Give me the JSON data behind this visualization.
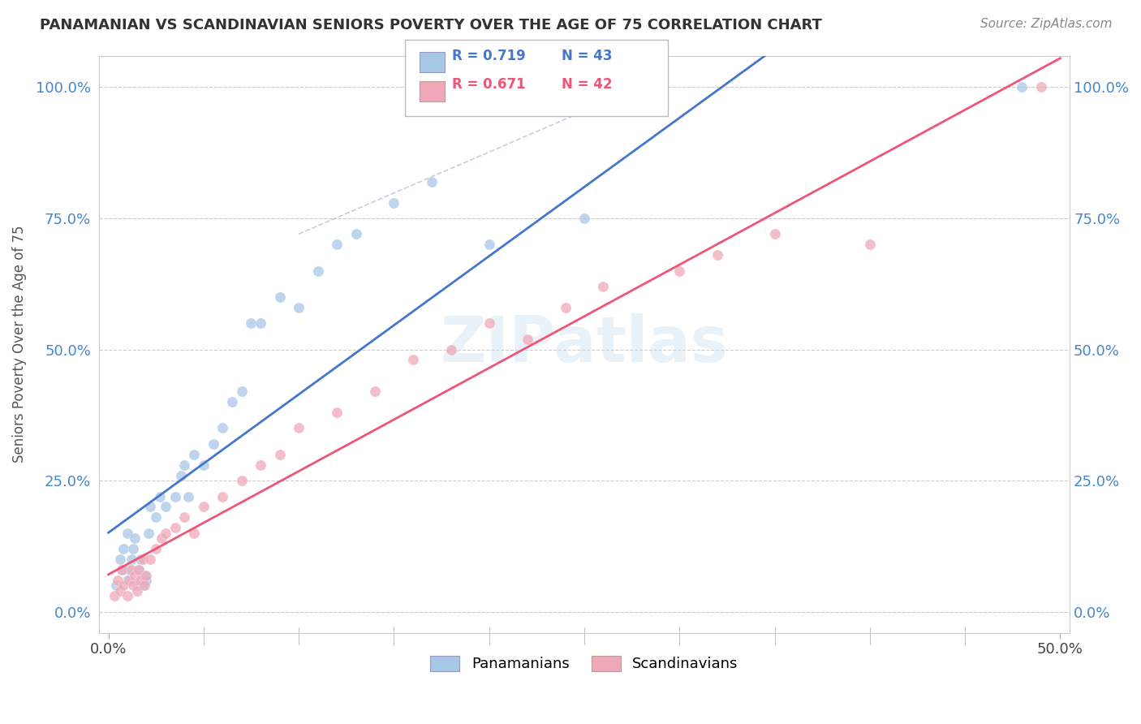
{
  "title": "PANAMANIAN VS SCANDINAVIAN SENIORS POVERTY OVER THE AGE OF 75 CORRELATION CHART",
  "source": "Source: ZipAtlas.com",
  "ylabel": "Seniors Poverty Over the Age of 75",
  "xlabel": "",
  "xlim": [
    -0.005,
    0.505
  ],
  "ylim": [
    -0.04,
    1.06
  ],
  "ytick_labels": [
    "0.0%",
    "25.0%",
    "50.0%",
    "75.0%",
    "100.0%"
  ],
  "ytick_values": [
    0.0,
    0.25,
    0.5,
    0.75,
    1.0
  ],
  "xtick_labels": [
    "0.0%",
    "50.0%"
  ],
  "xtick_values": [
    0.0,
    0.5
  ],
  "panamanian_color": "#a8c8e8",
  "scandinavian_color": "#f0a8b8",
  "panamanian_line_color": "#4477cc",
  "scandinavian_line_color": "#ee5577",
  "watermark": "ZIPatlas",
  "background_color": "#ffffff",
  "panamanian_R": 0.719,
  "panamanian_N": 43,
  "scandinavian_R": 0.671,
  "scandinavian_N": 42,
  "pan_x": [
    0.004,
    0.006,
    0.007,
    0.008,
    0.01,
    0.01,
    0.011,
    0.012,
    0.013,
    0.014,
    0.015,
    0.016,
    0.017,
    0.018,
    0.019,
    0.02,
    0.021,
    0.022,
    0.025,
    0.027,
    0.03,
    0.035,
    0.038,
    0.04,
    0.042,
    0.045,
    0.05,
    0.055,
    0.06,
    0.065,
    0.07,
    0.075,
    0.08,
    0.09,
    0.1,
    0.11,
    0.12,
    0.13,
    0.15,
    0.17,
    0.2,
    0.25,
    0.48
  ],
  "pan_y": [
    0.05,
    0.1,
    0.08,
    0.12,
    0.06,
    0.15,
    0.08,
    0.1,
    0.12,
    0.14,
    0.05,
    0.08,
    0.1,
    0.05,
    0.07,
    0.06,
    0.15,
    0.2,
    0.18,
    0.22,
    0.2,
    0.22,
    0.26,
    0.28,
    0.22,
    0.3,
    0.28,
    0.32,
    0.35,
    0.4,
    0.42,
    0.55,
    0.55,
    0.6,
    0.58,
    0.65,
    0.7,
    0.72,
    0.78,
    0.82,
    0.7,
    0.75,
    1.0
  ],
  "scan_x": [
    0.003,
    0.005,
    0.006,
    0.007,
    0.008,
    0.01,
    0.011,
    0.012,
    0.013,
    0.014,
    0.015,
    0.016,
    0.017,
    0.018,
    0.019,
    0.02,
    0.022,
    0.025,
    0.028,
    0.03,
    0.035,
    0.04,
    0.045,
    0.05,
    0.06,
    0.07,
    0.08,
    0.09,
    0.1,
    0.12,
    0.14,
    0.16,
    0.18,
    0.2,
    0.22,
    0.24,
    0.26,
    0.3,
    0.32,
    0.35,
    0.4,
    0.49
  ],
  "scan_y": [
    0.03,
    0.06,
    0.04,
    0.08,
    0.05,
    0.03,
    0.06,
    0.08,
    0.05,
    0.07,
    0.04,
    0.08,
    0.06,
    0.1,
    0.05,
    0.07,
    0.1,
    0.12,
    0.14,
    0.15,
    0.16,
    0.18,
    0.15,
    0.2,
    0.22,
    0.25,
    0.28,
    0.3,
    0.35,
    0.38,
    0.42,
    0.48,
    0.5,
    0.55,
    0.52,
    0.58,
    0.62,
    0.65,
    0.68,
    0.72,
    0.7,
    1.0
  ]
}
